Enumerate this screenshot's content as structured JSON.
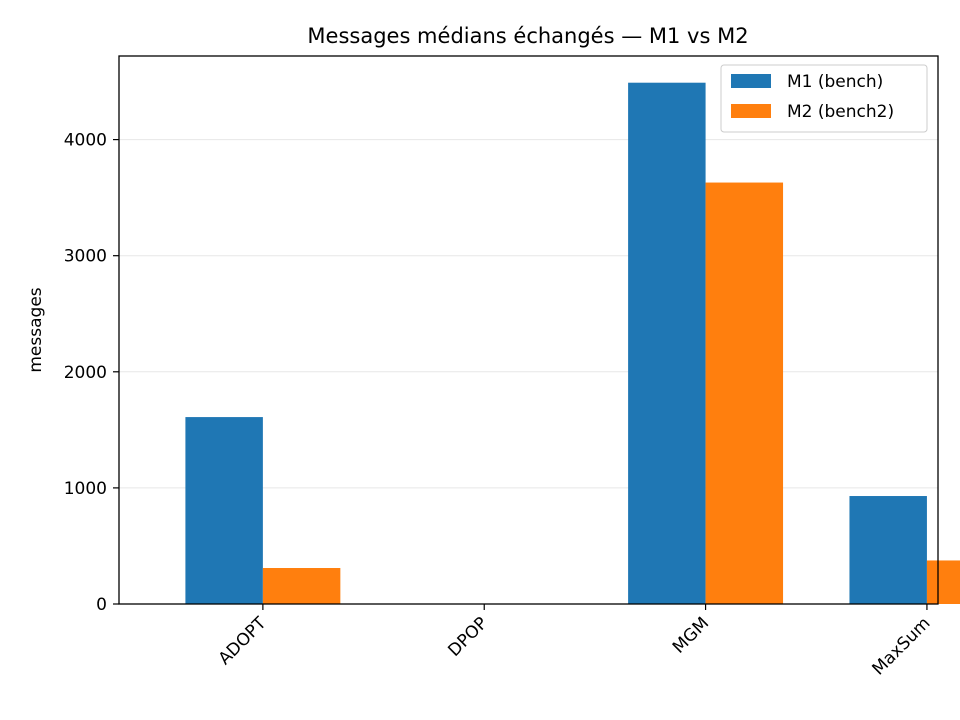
{
  "chart_data": {
    "type": "bar",
    "title": "Messages médians échangés — M1 vs M2",
    "xlabel": "",
    "ylabel": "messages",
    "categories": [
      "ADOPT",
      "DPOP",
      "MGM",
      "MaxSum"
    ],
    "series": [
      {
        "name": "M1 (bench)",
        "color": "#1f77b4",
        "values": [
          1610,
          0,
          4490,
          930
        ]
      },
      {
        "name": "M2 (bench2)",
        "color": "#ff7f0e",
        "values": [
          310,
          0,
          3630,
          375
        ]
      }
    ],
    "ylim": [
      0,
      4720
    ],
    "yticks": [
      0,
      1000,
      2000,
      3000,
      4000
    ],
    "grid": "y",
    "legend_position": "top-right"
  }
}
